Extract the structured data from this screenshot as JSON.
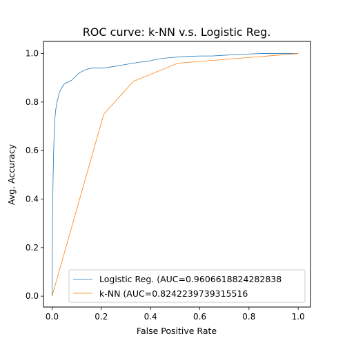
{
  "chart_data": {
    "type": "line",
    "title": "ROC curve: k-NN v.s. Logistic Reg.",
    "xlabel": "False Positive Rate",
    "ylabel": "Avg. Accuracy",
    "xlim": [
      -0.035,
      1.05
    ],
    "ylim": [
      -0.045,
      1.05
    ],
    "xticks": [
      "0.0",
      "0.2",
      "0.4",
      "0.6",
      "0.8",
      "1.0"
    ],
    "yticks": [
      "0.0",
      "0.2",
      "0.4",
      "0.6",
      "0.8",
      "1.0"
    ],
    "grid": false,
    "legend_position": "lower-right",
    "series": [
      {
        "name": "Logistic Reg. (AUC=0.9606618824282838",
        "color": "#1f77b4",
        "x": [
          0.0,
          0.001,
          0.002,
          0.004,
          0.006,
          0.008,
          0.01,
          0.012,
          0.015,
          0.02,
          0.025,
          0.03,
          0.035,
          0.04,
          0.05,
          0.06,
          0.07,
          0.08,
          0.09,
          0.1,
          0.11,
          0.12,
          0.13,
          0.14,
          0.16,
          0.18,
          0.2,
          0.22,
          0.24,
          0.27,
          0.3,
          0.33,
          0.36,
          0.39,
          0.42,
          0.45,
          0.5,
          0.55,
          0.6,
          0.65,
          0.7,
          0.75,
          0.8,
          0.85,
          0.9,
          0.95,
          1.0
        ],
        "y": [
          0.0,
          0.2,
          0.35,
          0.48,
          0.58,
          0.65,
          0.7,
          0.74,
          0.77,
          0.8,
          0.82,
          0.84,
          0.85,
          0.86,
          0.875,
          0.88,
          0.885,
          0.89,
          0.9,
          0.91,
          0.92,
          0.925,
          0.93,
          0.935,
          0.94,
          0.94,
          0.94,
          0.942,
          0.945,
          0.95,
          0.955,
          0.96,
          0.965,
          0.968,
          0.975,
          0.98,
          0.985,
          0.988,
          0.99,
          0.99,
          0.993,
          0.996,
          0.998,
          1.0,
          1.0,
          1.0,
          1.0
        ]
      },
      {
        "name": "k-NN (AUC=0.8242239739315516",
        "color": "#ff7f0e",
        "x": [
          0.0,
          0.21,
          0.33,
          0.51,
          1.0
        ],
        "y": [
          0.0,
          0.75,
          0.885,
          0.96,
          1.0
        ]
      }
    ]
  }
}
